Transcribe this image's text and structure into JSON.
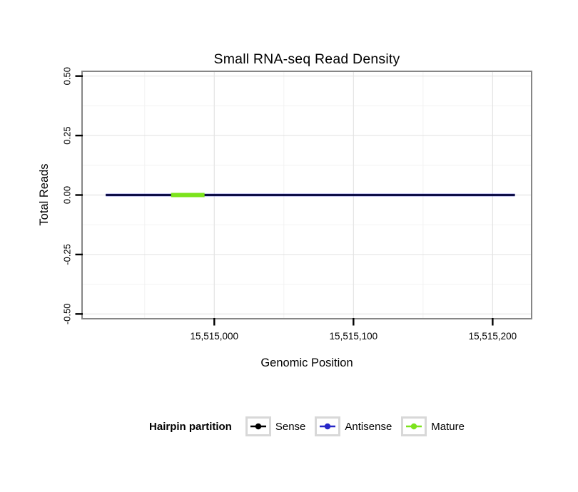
{
  "chart_data": {
    "type": "line",
    "title": "Small RNA-seq Read Density",
    "xlabel": "Genomic Position",
    "ylabel": "Total Reads",
    "xlim": [
      15514905,
      15515228
    ],
    "ylim": [
      -0.52,
      0.52
    ],
    "x_ticks": [
      {
        "value": 15515000,
        "label": "15,515,000"
      },
      {
        "value": 15515100,
        "label": "15,515,100"
      },
      {
        "value": 15515200,
        "label": "15,515,200"
      }
    ],
    "y_ticks": [
      {
        "value": 0.5,
        "label": "0.50"
      },
      {
        "value": 0.25,
        "label": "0.25"
      },
      {
        "value": 0,
        "label": "0.00"
      },
      {
        "value": -0.25,
        "label": "-0.25"
      },
      {
        "value": -0.5,
        "label": "-0.50"
      }
    ],
    "series": [
      {
        "name": "Antisense",
        "color": "#2727c8",
        "y": 0,
        "width": 3.4,
        "segments": [
          [
            15514922,
            15515216
          ]
        ]
      },
      {
        "name": "Sense",
        "color": "#000000",
        "y": 0,
        "width": 2.0,
        "segments": [
          [
            15514922,
            15515216
          ]
        ]
      },
      {
        "name": "Mature",
        "color": "#7ce31c",
        "y": 0,
        "width": 6.0,
        "segments": [
          [
            15514969,
            15514993
          ]
        ]
      }
    ],
    "legend": {
      "title": "Hairpin partition",
      "entries": [
        {
          "label": "Sense",
          "color": "#000000"
        },
        {
          "label": "Antisense",
          "color": "#2727c8"
        },
        {
          "label": "Mature",
          "color": "#7ce31c"
        }
      ]
    },
    "grid": {
      "major_color": "#e4e4e4",
      "minor_color": "#f2f2f2"
    },
    "border_color": "#868686",
    "tick_color": "#000000"
  }
}
